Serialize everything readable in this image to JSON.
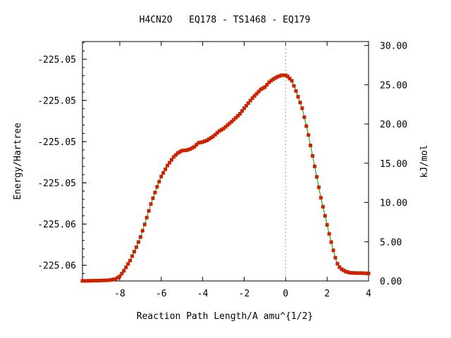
{
  "chart_data": {
    "type": "line",
    "title": "H4CN2O   EQ178 - TS1468 - EQ179",
    "xlabel": "Reaction Path Length/A amu^{1/2}",
    "ylabel_left": "Energy/Hartree",
    "ylabel_right": "kJ/mol",
    "xlim": [
      -9.8,
      4.0
    ],
    "ylim_kj": [
      0,
      30.5
    ],
    "x_ticks": [
      -8,
      -6,
      -4,
      -2,
      0,
      2,
      4
    ],
    "x_tick_labels": [
      "-8",
      "-6",
      "-4",
      "-2",
      "0",
      "2",
      "4"
    ],
    "y_right_ticks": [
      0,
      5,
      10,
      15,
      20,
      25,
      30
    ],
    "y_right_tick_labels": [
      "0.00",
      "5.00",
      "10.00",
      "15.00",
      "20.00",
      "25.00",
      "30.00"
    ],
    "y_left_ticks_kj": [
      2.0,
      7.25,
      12.5,
      17.75,
      23.0,
      28.25
    ],
    "y_left_tick_labels": [
      "-225.06",
      "-225.06",
      "-225.05",
      "-225.05",
      "-225.05",
      "-225.05"
    ],
    "ts_marker_x": 0.0,
    "colors": {
      "line": "#00a000",
      "points": "#cc2200",
      "ts_marker": "#999999"
    },
    "series": [
      {
        "x": [
          -9.8,
          -9.0,
          -8.5,
          -8.2,
          -8.0,
          -7.8,
          -7.5,
          -7.2,
          -7.0,
          -6.8,
          -6.5,
          -6.2,
          -6.0,
          -5.7,
          -5.4,
          -5.2,
          -5.0,
          -4.8,
          -4.6,
          -4.4,
          -4.2,
          -4.0,
          -3.8,
          -3.5,
          -3.2,
          -3.0,
          -2.6,
          -2.2,
          -2.0,
          -1.6,
          -1.2,
          -1.0,
          -0.8,
          -0.6,
          -0.4,
          -0.2,
          0.0,
          0.1,
          0.3,
          0.5,
          0.8,
          1.1,
          1.4,
          1.7,
          1.9,
          2.1,
          2.3,
          2.45,
          2.55,
          2.7,
          2.9,
          3.1,
          3.4,
          3.7,
          4.0
        ],
        "y_kj": [
          0.0,
          0.05,
          0.1,
          0.25,
          0.6,
          1.3,
          2.6,
          4.3,
          5.6,
          7.2,
          9.8,
          12.0,
          13.3,
          14.7,
          15.8,
          16.3,
          16.6,
          16.65,
          16.8,
          17.1,
          17.6,
          17.7,
          17.9,
          18.4,
          19.1,
          19.4,
          20.3,
          21.3,
          22.0,
          23.3,
          24.4,
          24.7,
          25.3,
          25.7,
          26.0,
          26.2,
          26.2,
          26.05,
          25.5,
          24.2,
          22.0,
          18.6,
          14.6,
          10.6,
          8.3,
          6.0,
          3.9,
          2.5,
          1.9,
          1.5,
          1.2,
          1.05,
          1.0,
          1.0,
          0.95
        ]
      }
    ]
  }
}
